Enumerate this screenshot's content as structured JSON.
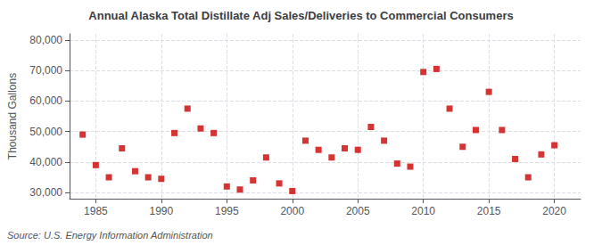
{
  "chart_data": {
    "type": "scatter",
    "title": "Annual Alaska Total Distillate Adj Sales/Deliveries to Commercial Consumers",
    "ylabel": "Thousand Gallons",
    "source": "Source: U.S. Energy Information Administration",
    "color": "#cc0000",
    "marker": "square",
    "x": [
      1984,
      1985,
      1986,
      1987,
      1988,
      1989,
      1990,
      1991,
      1992,
      1993,
      1994,
      1995,
      1996,
      1997,
      1998,
      1999,
      2000,
      2001,
      2002,
      2003,
      2004,
      2005,
      2006,
      2007,
      2008,
      2009,
      2010,
      2011,
      2012,
      2013,
      2014,
      2015,
      2016,
      2017,
      2018,
      2019,
      2020
    ],
    "values": [
      49000,
      39000,
      35000,
      44500,
      37000,
      35000,
      34500,
      49500,
      57500,
      51000,
      49500,
      32000,
      31000,
      34000,
      41500,
      33000,
      30500,
      47000,
      44000,
      41500,
      44500,
      44000,
      51500,
      47000,
      39500,
      38500,
      69500,
      70500,
      57500,
      45000,
      50500,
      63000,
      50500,
      41000,
      35000,
      42500,
      45500
    ],
    "xlim": [
      1983,
      2022
    ],
    "xticks": [
      1985,
      1990,
      1995,
      2000,
      2005,
      2010,
      2015,
      2020
    ],
    "ylim": [
      28000,
      82000
    ],
    "yticks": [
      {
        "value": 30000,
        "label": "30,000"
      },
      {
        "value": 40000,
        "label": "40,000"
      },
      {
        "value": 50000,
        "label": "50,000"
      },
      {
        "value": 60000,
        "label": "60,000"
      },
      {
        "value": 70000,
        "label": "70,000"
      },
      {
        "value": 80000,
        "label": "80,000"
      }
    ],
    "grid": true
  }
}
